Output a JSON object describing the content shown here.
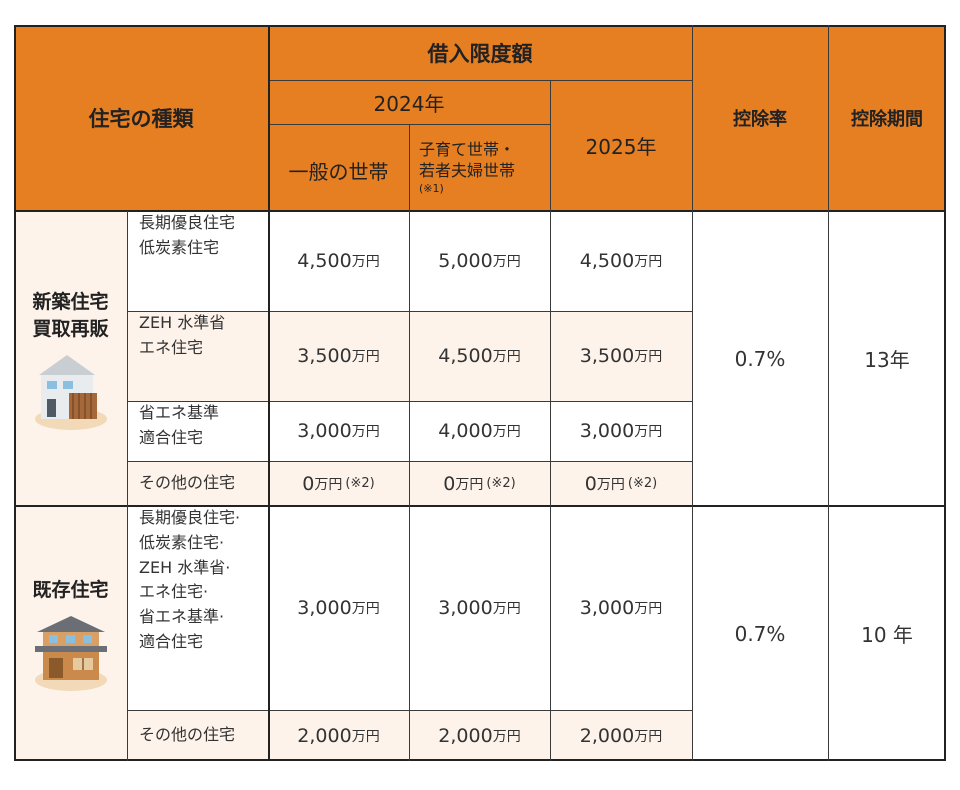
{
  "header": {
    "house_type": "住宅の種類",
    "borrowing_limit": "借入限度額",
    "year_2024": "2024年",
    "general": "一般の世帯",
    "child_young_line1": "子育て世帯・",
    "child_young_line2": "若者夫婦世帯",
    "child_young_note": "(※1)",
    "year_2025": "2025年",
    "deduction_rate": "控除率",
    "deduction_period": "控除期間"
  },
  "new_housing": {
    "label_line1": "新築住宅",
    "label_line2": "買取再販",
    "icon": "new-house-icon",
    "rows": [
      {
        "line1": "長期優良住宅",
        "line2": "低炭素住宅",
        "v1": "4,500",
        "v2": "5,000",
        "v3": "4,500"
      },
      {
        "line1": "ZEH 水準省",
        "line2": "エネ住宅",
        "v1": "3,500",
        "v2": "4,500",
        "v3": "3,500"
      },
      {
        "line1": "省エネ基準",
        "line2": "適合住宅",
        "v1": "3,000",
        "v2": "4,000",
        "v3": "3,000"
      },
      {
        "line1": "その他の住宅",
        "v1": "0",
        "v2": "0",
        "v3": "0",
        "note": "(※2)"
      }
    ],
    "rate": "0.7%",
    "period": "13年"
  },
  "existing_housing": {
    "label": "既存住宅",
    "icon": "traditional-house-icon",
    "rows": [
      {
        "lines": [
          "長期優良住宅·",
          "低炭素住宅·",
          "ZEH 水準省·",
          "エネ住宅·",
          "省エネ基準·",
          "適合住宅"
        ],
        "v1": "3,000",
        "v2": "3,000",
        "v3": "3,000"
      },
      {
        "line1": "その他の住宅",
        "v1": "2,000",
        "v2": "2,000",
        "v3": "2,000"
      }
    ],
    "rate": "0.7%",
    "period": "10 年"
  },
  "unit": "万円",
  "colors": {
    "header": "#e67e22",
    "shade": "#fdf3ea",
    "border": "#222222"
  }
}
